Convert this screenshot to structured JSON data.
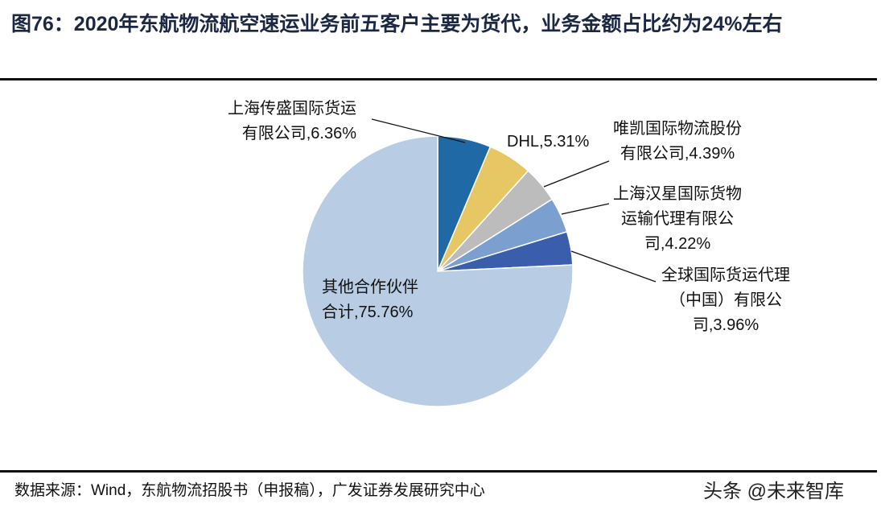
{
  "title": "图76：2020年东航物流航空速运业务前五客户主要为货代，业务金额占比约为24%左右",
  "source": "数据来源：Wind，东航物流招股书（申报稿），广发证券发展研究中心",
  "watermark": "头条 @未来智库",
  "chart_data": {
    "type": "pie",
    "title": "2020年东航物流航空速运业务前五客户主要为货代，业务金额占比约为24%左右",
    "slices": [
      {
        "name": "上海传盛国际货运有限公司",
        "value": 6.36,
        "color": "#1f69a6",
        "label_lines": [
          "上海传盛国际货运",
          "有限公司,6.36%"
        ]
      },
      {
        "name": "DHL",
        "value": 5.31,
        "color": "#e7c763",
        "label_lines": [
          "DHL,5.31%"
        ]
      },
      {
        "name": "唯凯国际物流股份有限公司",
        "value": 4.39,
        "color": "#bcbcbc",
        "label_lines": [
          "唯凯国际物流股份",
          "有限公司,4.39%"
        ]
      },
      {
        "name": "上海汉星国际货物运输代理有限公司",
        "value": 4.22,
        "color": "#7b9fcf",
        "label_lines": [
          "上海汉星国际货物",
          "运输代理有限公",
          "司,4.22%"
        ]
      },
      {
        "name": "全球国际货运代理（中国）有限公司",
        "value": 3.96,
        "color": "#3a5eac",
        "label_lines": [
          "全球国际货运代理",
          "（中国）有限公",
          "司,3.96%"
        ]
      },
      {
        "name": "其他合作伙伴合计",
        "value": 75.76,
        "color": "#b8cce4",
        "label_lines": [
          "其他合作伙伴",
          "合计,75.76%"
        ]
      }
    ]
  }
}
